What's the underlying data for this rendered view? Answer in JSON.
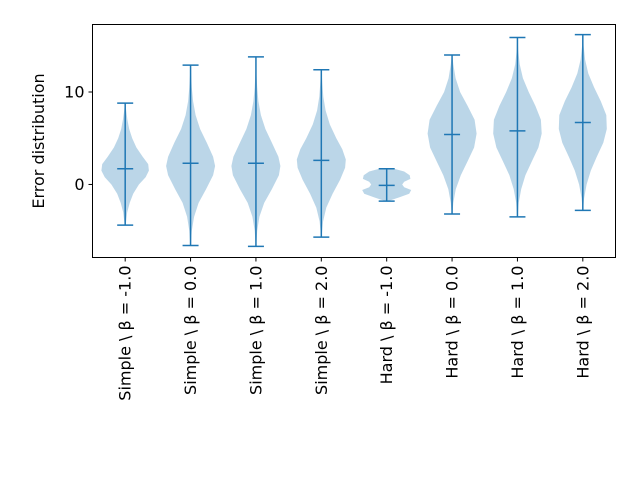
{
  "chart_data": {
    "type": "violin",
    "title": "",
    "xlabel": "",
    "ylabel": "Error distribution",
    "ylim": [
      -7.9,
      17.3
    ],
    "yticks": [
      0,
      10
    ],
    "ytick_labels": [
      "0",
      "10"
    ],
    "grid": false,
    "colors": {
      "body": "#1f77b4",
      "line": "#1f77b4",
      "body_alpha": 0.3
    },
    "categories": [
      "Simple \\ β = -1.0",
      "Simple \\ β = 0.0",
      "Simple \\ β = 1.0",
      "Simple \\ β = 2.0",
      "Hard \\ β = -1.0",
      "Hard \\ β = 0.0",
      "Hard \\ β = 1.0",
      "Hard \\ β = 2.0"
    ],
    "series": [
      {
        "name": "Simple \\ β = -1.0",
        "min": -4.4,
        "median": 1.7,
        "max": 8.8,
        "density": [
          [
            -4.4,
            0.02
          ],
          [
            -3,
            0.08
          ],
          [
            -2,
            0.18
          ],
          [
            -1,
            0.32
          ],
          [
            0,
            0.55
          ],
          [
            0.8,
            0.82
          ],
          [
            1.5,
            0.95
          ],
          [
            2.2,
            0.92
          ],
          [
            3,
            0.7
          ],
          [
            4,
            0.45
          ],
          [
            5,
            0.28
          ],
          [
            6,
            0.16
          ],
          [
            7,
            0.09
          ],
          [
            8,
            0.04
          ],
          [
            8.8,
            0.01
          ]
        ]
      },
      {
        "name": "Simple \\ β = 0.0",
        "min": -6.6,
        "median": 2.3,
        "max": 12.9,
        "density": [
          [
            -6.6,
            0.01
          ],
          [
            -5,
            0.05
          ],
          [
            -3.5,
            0.14
          ],
          [
            -2,
            0.32
          ],
          [
            -0.5,
            0.62
          ],
          [
            1,
            0.9
          ],
          [
            2,
            0.98
          ],
          [
            3,
            0.9
          ],
          [
            4.5,
            0.65
          ],
          [
            6,
            0.38
          ],
          [
            7.5,
            0.2
          ],
          [
            9,
            0.1
          ],
          [
            10.5,
            0.05
          ],
          [
            12,
            0.02
          ],
          [
            12.9,
            0.01
          ]
        ]
      },
      {
        "name": "Simple \\ β = 1.0",
        "min": -6.7,
        "median": 2.3,
        "max": 13.8,
        "density": [
          [
            -6.7,
            0.01
          ],
          [
            -5,
            0.05
          ],
          [
            -3.5,
            0.14
          ],
          [
            -2,
            0.33
          ],
          [
            -0.5,
            0.64
          ],
          [
            1,
            0.92
          ],
          [
            2,
            0.98
          ],
          [
            3,
            0.9
          ],
          [
            4.5,
            0.64
          ],
          [
            6,
            0.38
          ],
          [
            7.5,
            0.2
          ],
          [
            9,
            0.1
          ],
          [
            10.5,
            0.05
          ],
          [
            12,
            0.02
          ],
          [
            13.8,
            0.01
          ]
        ]
      },
      {
        "name": "Simple \\ β = 2.0",
        "min": -5.7,
        "median": 2.6,
        "max": 12.4,
        "density": [
          [
            -5.7,
            0.01
          ],
          [
            -4,
            0.07
          ],
          [
            -2.5,
            0.2
          ],
          [
            -1,
            0.45
          ],
          [
            0.5,
            0.75
          ],
          [
            1.8,
            0.95
          ],
          [
            2.7,
            0.98
          ],
          [
            3.8,
            0.84
          ],
          [
            5,
            0.6
          ],
          [
            6.5,
            0.34
          ],
          [
            8,
            0.17
          ],
          [
            9.5,
            0.08
          ],
          [
            11,
            0.04
          ],
          [
            12.4,
            0.01
          ]
        ]
      },
      {
        "name": "Hard \\ β = -1.0",
        "min": -1.8,
        "median": -0.1,
        "max": 1.7,
        "density": [
          [
            -1.8,
            0.05
          ],
          [
            -1.4,
            0.5
          ],
          [
            -1,
            0.9
          ],
          [
            -0.6,
            0.98
          ],
          [
            -0.3,
            0.7
          ],
          [
            0,
            0.62
          ],
          [
            0.3,
            0.7
          ],
          [
            0.6,
            0.95
          ],
          [
            1,
            0.92
          ],
          [
            1.4,
            0.7
          ],
          [
            1.7,
            0.3
          ]
        ]
      },
      {
        "name": "Hard \\ β = 0.0",
        "min": -3.2,
        "median": 5.4,
        "max": 14.0,
        "density": [
          [
            -3.2,
            0.01
          ],
          [
            -2,
            0.05
          ],
          [
            -0.5,
            0.15
          ],
          [
            1,
            0.35
          ],
          [
            2.5,
            0.62
          ],
          [
            4,
            0.88
          ],
          [
            5.5,
            0.98
          ],
          [
            7,
            0.9
          ],
          [
            8.5,
            0.62
          ],
          [
            10,
            0.32
          ],
          [
            11.5,
            0.14
          ],
          [
            13,
            0.05
          ],
          [
            14,
            0.01
          ]
        ]
      },
      {
        "name": "Hard \\ β = 1.0",
        "min": -3.5,
        "median": 5.8,
        "max": 15.9,
        "density": [
          [
            -3.5,
            0.01
          ],
          [
            -2,
            0.05
          ],
          [
            -0.5,
            0.15
          ],
          [
            1,
            0.32
          ],
          [
            2.5,
            0.58
          ],
          [
            4,
            0.84
          ],
          [
            5.5,
            0.97
          ],
          [
            7,
            0.94
          ],
          [
            8.5,
            0.72
          ],
          [
            10,
            0.45
          ],
          [
            11.5,
            0.22
          ],
          [
            13,
            0.09
          ],
          [
            14.5,
            0.03
          ],
          [
            15.9,
            0.01
          ]
        ]
      },
      {
        "name": "Hard \\ β = 2.0",
        "min": -2.8,
        "median": 6.7,
        "max": 16.2,
        "density": [
          [
            -2.8,
            0.01
          ],
          [
            -1.5,
            0.05
          ],
          [
            0,
            0.15
          ],
          [
            1.5,
            0.32
          ],
          [
            3,
            0.56
          ],
          [
            4.5,
            0.82
          ],
          [
            6,
            0.96
          ],
          [
            7.5,
            0.94
          ],
          [
            9,
            0.72
          ],
          [
            10.5,
            0.45
          ],
          [
            12,
            0.22
          ],
          [
            13.5,
            0.09
          ],
          [
            15,
            0.03
          ],
          [
            16.2,
            0.01
          ]
        ]
      }
    ]
  }
}
